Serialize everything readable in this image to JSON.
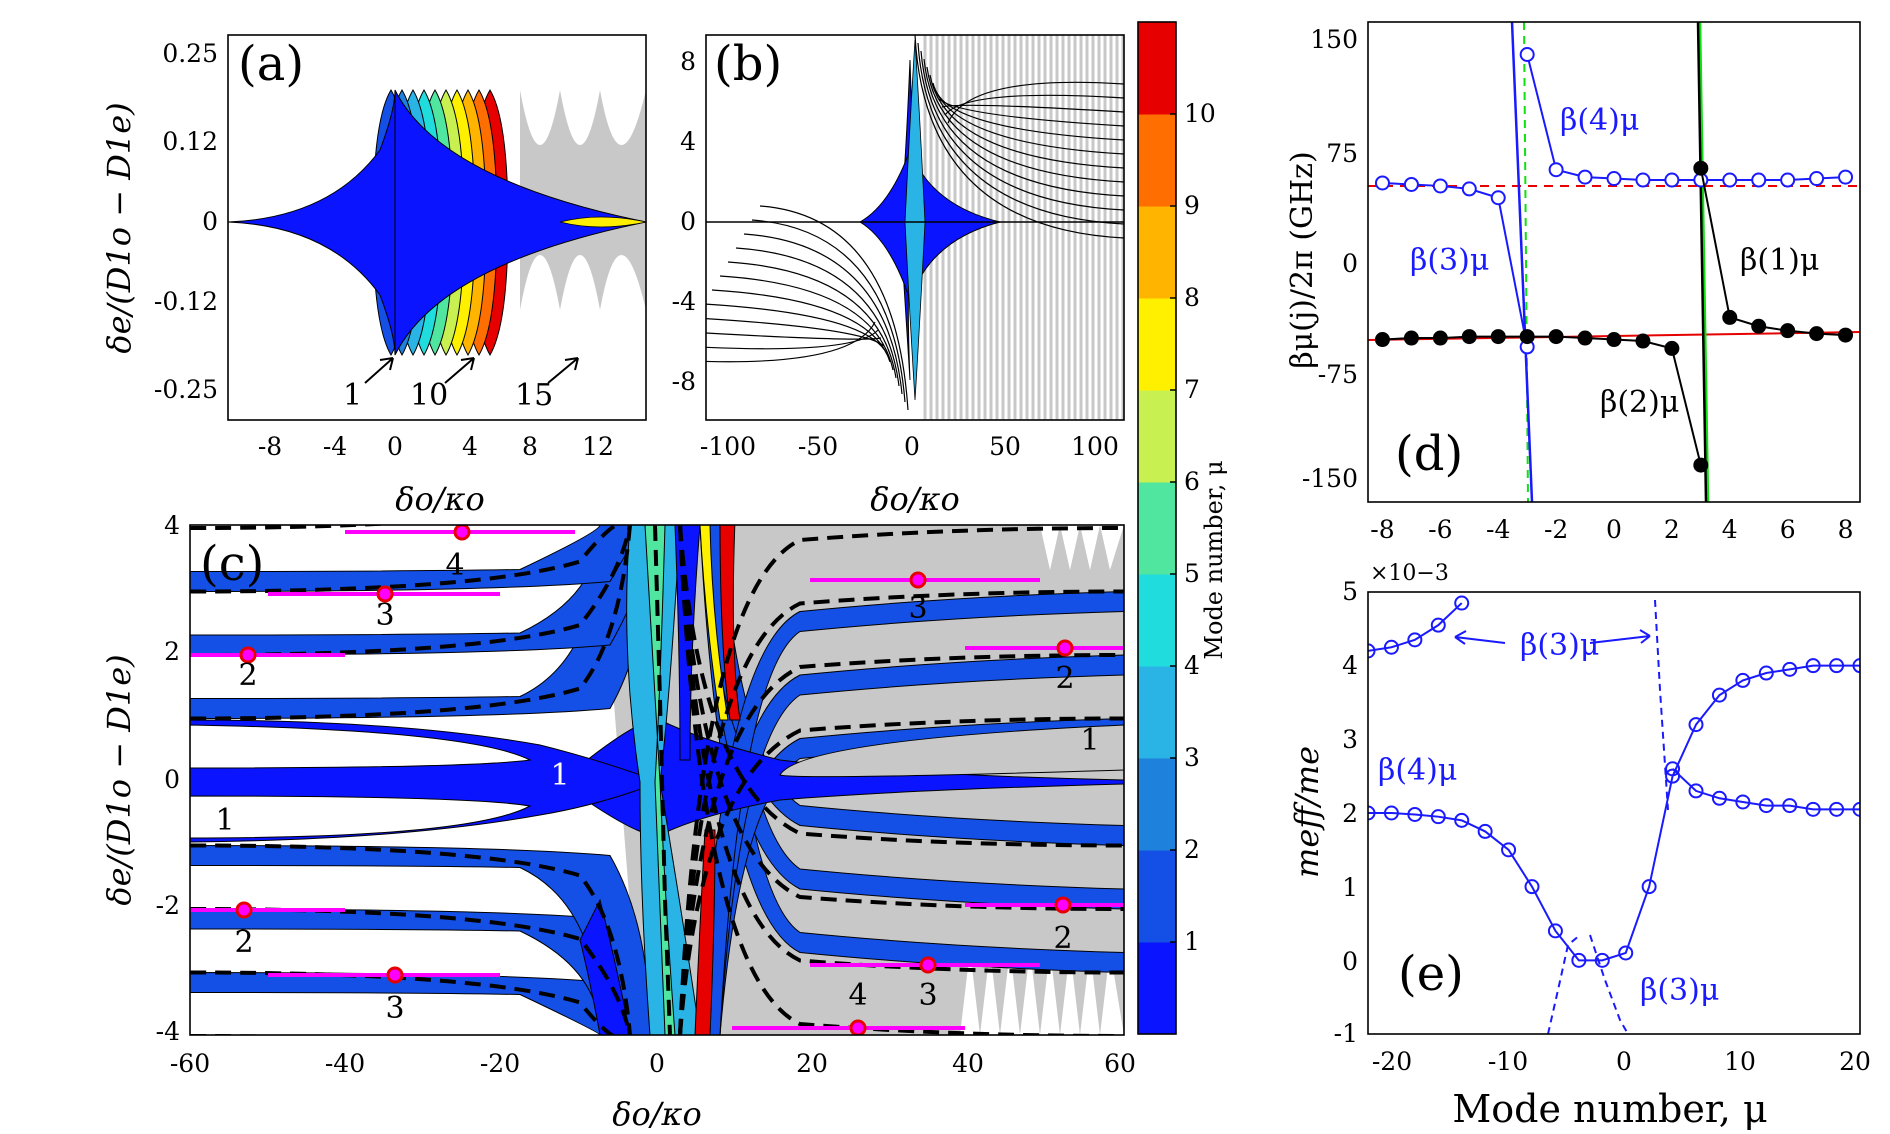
{
  "figure": {
    "colorbar": {
      "label": "Mode number, μ",
      "ticks": [
        "1",
        "2",
        "3",
        "4",
        "5",
        "6",
        "7",
        "8",
        "9",
        "10"
      ],
      "colors": [
        "#0a14ff",
        "#1450e6",
        "#1e82dc",
        "#2ab4e6",
        "#20dcdc",
        "#50e6a0",
        "#c8f050",
        "#fff000",
        "#ffb400",
        "#ff6e00",
        "#e60000"
      ]
    },
    "panels": {
      "a": {
        "label": "(a)",
        "xlabel": "δo/κo",
        "ylabel": "δe/(D1o − D1e)",
        "xticks": [
          "-8",
          "-4",
          "0",
          "4",
          "8",
          "12"
        ],
        "yticks": [
          "0.25",
          "0.12",
          "0",
          "-0.12",
          "-0.25"
        ],
        "annotations": [
          "1",
          "10",
          "15"
        ]
      },
      "b": {
        "label": "(b)",
        "xlabel": "δo/κo",
        "xticks": [
          "-100",
          "-50",
          "0",
          "50",
          "100"
        ],
        "yticks": [
          "8",
          "4",
          "0",
          "-4",
          "-8"
        ]
      },
      "c": {
        "label": "(c)",
        "xlabel": "δo/κo",
        "ylabel": "δe/(D1o − D1e)",
        "xticks": [
          "-60",
          "-40",
          "-20",
          "0",
          "20",
          "40",
          "60"
        ],
        "yticks": [
          "4",
          "2",
          "0",
          "-2",
          "-4"
        ],
        "annotations": [
          "4",
          "3",
          "2",
          "1",
          "1",
          "1",
          "2",
          "3",
          "3",
          "2",
          "1",
          "2",
          "3",
          "4"
        ]
      },
      "d": {
        "label": "(d)",
        "ylabel": "βμ(j)/2π (GHz)",
        "xticks": [
          "-8",
          "-6",
          "-4",
          "-2",
          "0",
          "2",
          "4",
          "6",
          "8"
        ],
        "yticks": [
          "150",
          "75",
          "0",
          "-75",
          "-150"
        ],
        "annotations": [
          "β(4)μ",
          "β(3)μ",
          "β(1)μ",
          "β(2)μ"
        ]
      },
      "e": {
        "label": "(e)",
        "xlabel": "Mode number, μ",
        "ylabel": "meff/me",
        "exponent": "×10−3",
        "xticks": [
          "-20",
          "-10",
          "0",
          "10",
          "20"
        ],
        "yticks": [
          "5",
          "4",
          "3",
          "2",
          "1",
          "0",
          "-1"
        ],
        "annotations": [
          "β(3)μ",
          "β(4)μ",
          "β(3)μ"
        ]
      }
    }
  },
  "chart_data": [
    {
      "panel": "d",
      "type": "line",
      "xlim": [
        -8.5,
        8.5
      ],
      "ylim": [
        -165,
        160
      ],
      "series": [
        {
          "name": "β(4)μ branch",
          "color": "#1a1aff",
          "x": [
            -3,
            -2,
            -1,
            0,
            1,
            2,
            3,
            4,
            5,
            6,
            7,
            8
          ],
          "y": [
            138,
            60,
            55,
            54,
            53,
            53,
            53,
            53,
            53,
            53,
            54,
            55
          ]
        },
        {
          "name": "β(3)μ branch",
          "color": "#1a1aff",
          "x": [
            -8,
            -7,
            -6,
            -5,
            -4,
            -3
          ],
          "y": [
            51,
            50,
            49,
            47,
            41,
            -60
          ]
        },
        {
          "name": "β(2)μ branch",
          "color": "#000000",
          "x": [
            -8,
            -7,
            -6,
            -5,
            -4,
            -3,
            -2,
            -1,
            0,
            1,
            2,
            3
          ],
          "y": [
            -55,
            -54,
            -54,
            -53,
            -53,
            -53,
            -53,
            -54,
            -55,
            -56,
            -61,
            -140
          ]
        },
        {
          "name": "β(1)μ branch",
          "color": "#000000",
          "x": [
            3,
            4,
            5,
            6,
            7,
            8
          ],
          "y": [
            61,
            -40,
            -46,
            -49,
            -51,
            -52
          ]
        }
      ]
    },
    {
      "panel": "e",
      "type": "scatter",
      "xlim": [
        -21,
        21
      ],
      "ylim": [
        -1,
        5
      ],
      "series": [
        {
          "name": "β(4)μ",
          "x": [
            -21,
            -19,
            -17,
            -15,
            -13,
            -11,
            -9,
            -7,
            -5,
            -3,
            -1,
            1,
            3,
            5,
            7,
            9,
            11,
            13,
            15,
            17,
            19,
            21
          ],
          "y": [
            2.0,
            2.0,
            1.98,
            1.95,
            1.9,
            1.75,
            1.5,
            1.0,
            0.4,
            0.0,
            0.0,
            0.1,
            1.0,
            2.5,
            3.2,
            3.6,
            3.8,
            3.9,
            3.95,
            4.0,
            4.0,
            4.0
          ]
        },
        {
          "name": "β(3)μ",
          "x": [
            -21,
            -19,
            -17,
            -15,
            -13,
            5,
            7,
            9,
            11,
            13,
            15,
            17,
            19,
            21
          ],
          "y": [
            4.2,
            4.25,
            4.35,
            4.55,
            4.85,
            2.6,
            2.3,
            2.2,
            2.15,
            2.1,
            2.1,
            2.05,
            2.05,
            2.05
          ]
        }
      ]
    }
  ]
}
